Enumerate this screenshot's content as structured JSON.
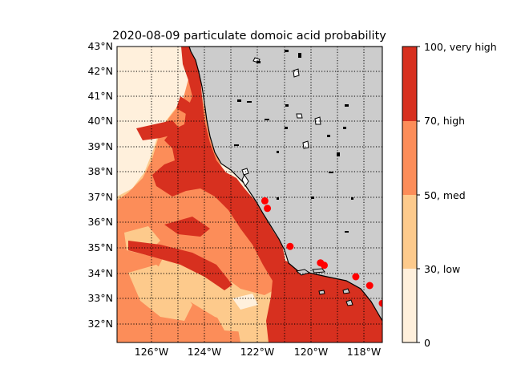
{
  "title": "2020-08-09 particulate domoic acid probability",
  "map": {
    "lat_ticks": [
      "32°N",
      "33°N",
      "34°N",
      "35°N",
      "36°N",
      "37°N",
      "38°N",
      "39°N",
      "40°N",
      "41°N",
      "42°N",
      "43°N"
    ],
    "lon_ticks": [
      "126°W",
      "124°W",
      "122°W",
      "120°W",
      "118°W"
    ],
    "lon_range": [
      -127.75,
      -117.25
    ],
    "lat_range": [
      31.3,
      43.0
    ],
    "land_color": "#cccccc",
    "grid": true,
    "stations": [
      {
        "lon": -121.9,
        "lat": 36.9
      },
      {
        "lon": -121.8,
        "lat": 36.6
      },
      {
        "lon": -120.9,
        "lat": 35.1
      },
      {
        "lon": -119.7,
        "lat": 34.45
      },
      {
        "lon": -119.55,
        "lat": 34.35
      },
      {
        "lon": -118.3,
        "lat": 33.9
      },
      {
        "lon": -117.75,
        "lat": 33.55
      },
      {
        "lon": -117.25,
        "lat": 32.85
      }
    ],
    "station_color": "#ff0000"
  },
  "colorbar": {
    "levels": [
      {
        "value": "0",
        "label": "0",
        "color": "#fff0dc"
      },
      {
        "value": "30",
        "label": "30, low",
        "color": "#fdca8c"
      },
      {
        "value": "50",
        "label": "50, med",
        "color": "#fc8d59"
      },
      {
        "value": "70",
        "label": "70, high",
        "color": "#d7301f"
      },
      {
        "value": "100",
        "label": "100, very high",
        "color": ""
      }
    ]
  }
}
